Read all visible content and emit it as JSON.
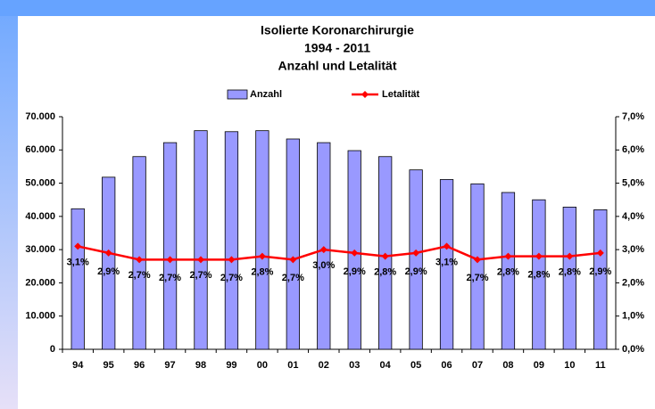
{
  "chart_data": {
    "type": "bar_line",
    "title": [
      "Isolierte Koronarchirurgie",
      "1994 - 2011",
      "Anzahl und Letalität"
    ],
    "categories": [
      "94",
      "95",
      "96",
      "97",
      "98",
      "99",
      "00",
      "01",
      "02",
      "03",
      "04",
      "05",
      "06",
      "07",
      "08",
      "09",
      "10",
      "11"
    ],
    "series": [
      {
        "name": "Anzahl",
        "color": "#9999ff",
        "values": [
          42300,
          51800,
          58000,
          62200,
          65800,
          65500,
          65800,
          63300,
          62200,
          59800,
          58000,
          54000,
          51100,
          49800,
          47200,
          45000,
          42800,
          42000
        ]
      },
      {
        "name": "Letalität",
        "color": "#ff0000",
        "axis": "y2",
        "values": [
          3.1,
          2.9,
          2.7,
          2.7,
          2.7,
          2.7,
          2.8,
          2.7,
          3.0,
          2.9,
          2.8,
          2.9,
          3.1,
          2.7,
          2.8,
          2.8,
          2.8,
          2.9
        ],
        "value_labels": [
          "3,1%",
          "2,9%",
          "2,7%",
          "2,7%",
          "2,7%",
          "2,7%",
          "2,8%",
          "2,7%",
          "3,0%",
          "2,9%",
          "2,8%",
          "2,9%",
          "3,1%",
          "2,7%",
          "2,8%",
          "2,8%",
          "2,8%",
          "2,9%"
        ]
      }
    ],
    "ylim": [
      0,
      70000
    ],
    "yticks": [
      0,
      {
        "value": 10000,
        "label": "10.000"
      },
      {
        "value": 20000,
        "label": "20.000"
      },
      {
        "value": 30000,
        "label": "30.000"
      },
      {
        "value": 40000,
        "label": "40.000"
      },
      {
        "value": 50000,
        "label": "50.000"
      },
      {
        "value": 60000,
        "label": "60.000"
      },
      {
        "value": 70000,
        "label": "70.000"
      }
    ],
    "y2lim": [
      0,
      7
    ],
    "y2ticks": [
      {
        "value": 0,
        "label": "0,0%"
      },
      {
        "value": 1,
        "label": "1,0%"
      },
      {
        "value": 2,
        "label": "2,0%"
      },
      {
        "value": 3,
        "label": "3,0%"
      },
      {
        "value": 4,
        "label": "4,0%"
      },
      {
        "value": 5,
        "label": "5,0%"
      },
      {
        "value": 6,
        "label": "6,0%"
      },
      {
        "value": 7,
        "label": "7,0%"
      }
    ],
    "grid": false
  }
}
